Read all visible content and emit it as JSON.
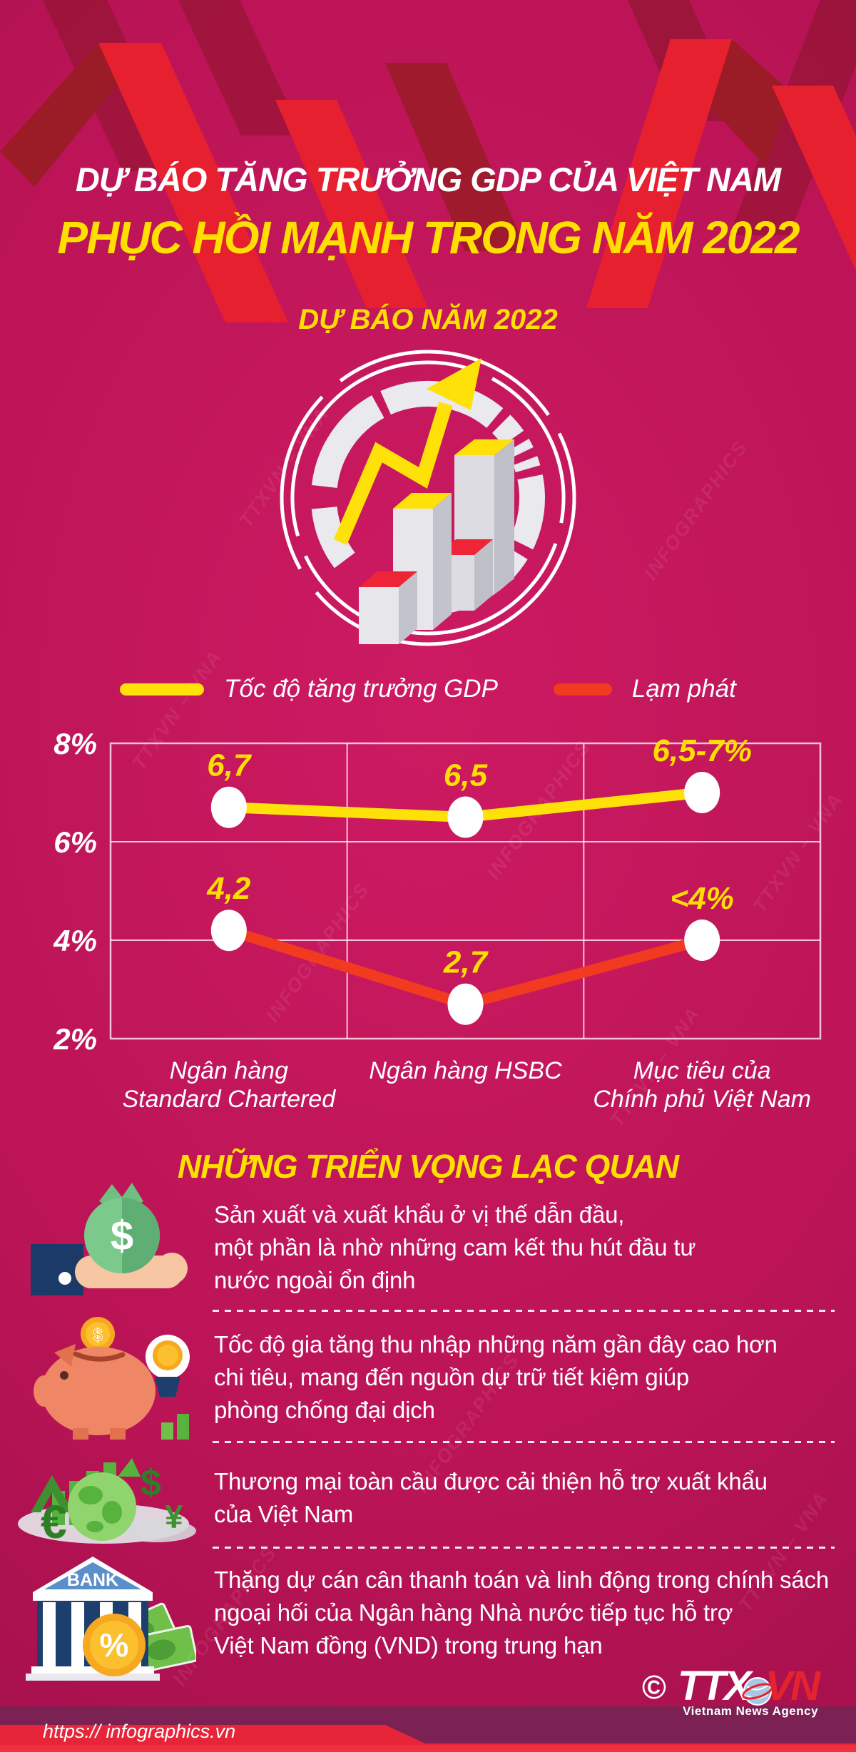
{
  "title": {
    "line1": "DỰ BÁO TĂNG TRƯỞNG GDP CỦA VIỆT NAM",
    "line2": "PHỤC HỒI MẠNH TRONG NĂM 2022",
    "subtitle": "DỰ BÁO NĂM 2022"
  },
  "colors": {
    "background": "#bb1456",
    "accent_yellow": "#ffdf00",
    "gdp_line": "#ffe10a",
    "inflation_line": "#f13a1f",
    "ribbon_red": "#e6202f",
    "footer_red": "#e62539"
  },
  "chart_data": {
    "type": "line",
    "title": "DỰ BÁO NĂM 2022",
    "categories": [
      "Ngân hàng\nStandard Chartered",
      "Ngân hàng HSBC",
      "Mục tiêu của\nChính phủ Việt Nam"
    ],
    "series": [
      {
        "name": "Tốc độ tăng trưởng GDP",
        "color": "#ffe10a",
        "values": [
          6.7,
          6.5,
          7.0
        ],
        "labels": [
          "6,7",
          "6,5",
          "6,5-7%"
        ]
      },
      {
        "name": "Lạm phát",
        "color": "#f13a1f",
        "values": [
          4.2,
          2.7,
          4.0
        ],
        "labels": [
          "4,2",
          "2,7",
          "<4%"
        ]
      }
    ],
    "ylim": [
      2,
      8
    ],
    "yticks": [
      "8%",
      "6%",
      "4%",
      "2%"
    ],
    "ytick_values": [
      8,
      6,
      4,
      2
    ],
    "grid": true,
    "legend_position": "top"
  },
  "section": {
    "title": "NHỮNG TRIỂN VỌNG LẠC QUAN",
    "items": [
      {
        "icon": "money-bag-hand-icon",
        "icon_glyph": "$",
        "text": "Sản xuất và xuất khẩu ở vị thế dẫn đầu,\nmột phần là nhờ những cam kết thu hút đầu tư\nnước ngoài ổn định"
      },
      {
        "icon": "piggy-bank-icon",
        "icon_glyph": "$",
        "text": "Tốc độ gia tăng thu nhập những năm gần đây cao hơn\nchi tiêu, mang đến nguồn dự trữ tiết kiệm giúp\nphòng chống đại dịch"
      },
      {
        "icon": "global-trade-icon",
        "icon_glyph": "€",
        "text": "Thương mại toàn cầu được cải thiện hỗ trợ xuất khẩu\ncủa Việt Nam"
      },
      {
        "icon": "bank-building-icon",
        "icon_label": "BANK",
        "icon_glyph": "%",
        "text": "Thặng dự cán cân thanh toán và linh động trong chính sách\nngoại hối của Ngân hàng Nhà nước tiếp tục hỗ trợ\nViệt Nam đồng (VND) trong trung hạn"
      }
    ]
  },
  "watermarks": [
    "TTXVN – VNA",
    "INFOGRAPHICS"
  ],
  "footer": {
    "copyright": "©",
    "logo_ttx": "TTX",
    "logo_vn": "VN",
    "agency": "Vietnam News Agency",
    "url": "https:// infographics.vn"
  }
}
